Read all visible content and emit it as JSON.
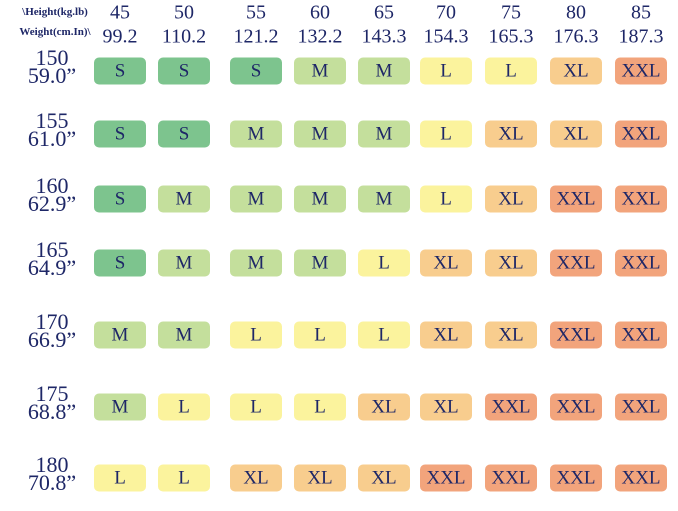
{
  "header": {
    "corner_top": "\\Height(kg.lb)",
    "corner_bottom": "Weight(cm.In)\\"
  },
  "columns": [
    {
      "kg": "45",
      "lb": "99.2"
    },
    {
      "kg": "50",
      "lb": "110.2"
    },
    {
      "kg": "55",
      "lb": "121.2"
    },
    {
      "kg": "60",
      "lb": "132.2"
    },
    {
      "kg": "65",
      "lb": "143.3"
    },
    {
      "kg": "70",
      "lb": "154.3"
    },
    {
      "kg": "75",
      "lb": "165.3"
    },
    {
      "kg": "80",
      "lb": "176.3"
    },
    {
      "kg": "85",
      "lb": "187.3"
    }
  ],
  "rows": [
    {
      "cm": "150",
      "inch": "59.0”",
      "sizes": [
        "S",
        "S",
        "S",
        "M",
        "M",
        "L",
        "L",
        "XL",
        "XXL"
      ]
    },
    {
      "cm": "155",
      "inch": "61.0”",
      "sizes": [
        "S",
        "S",
        "M",
        "M",
        "M",
        "L",
        "XL",
        "XL",
        "XXL"
      ]
    },
    {
      "cm": "160",
      "inch": "62.9”",
      "sizes": [
        "S",
        "M",
        "M",
        "M",
        "M",
        "L",
        "XL",
        "XXL",
        "XXL"
      ]
    },
    {
      "cm": "165",
      "inch": "64.9”",
      "sizes": [
        "S",
        "M",
        "M",
        "M",
        "L",
        "XL",
        "XL",
        "XXL",
        "XXL"
      ]
    },
    {
      "cm": "170",
      "inch": "66.9”",
      "sizes": [
        "M",
        "M",
        "L",
        "L",
        "L",
        "XL",
        "XL",
        "XXL",
        "XXL"
      ]
    },
    {
      "cm": "175",
      "inch": "68.8”",
      "sizes": [
        "M",
        "L",
        "L",
        "L",
        "XL",
        "XL",
        "XXL",
        "XXL",
        "XXL"
      ]
    },
    {
      "cm": "180",
      "inch": "70.8”",
      "sizes": [
        "L",
        "L",
        "XL",
        "XL",
        "XL",
        "XXL",
        "XXL",
        "XXL",
        "XXL"
      ]
    }
  ],
  "size_colors": {
    "S": "#7dc48e",
    "M": "#c4df9c",
    "L": "#fbf39d",
    "XL": "#f8cd8e",
    "XXL": "#f2a47c"
  }
}
